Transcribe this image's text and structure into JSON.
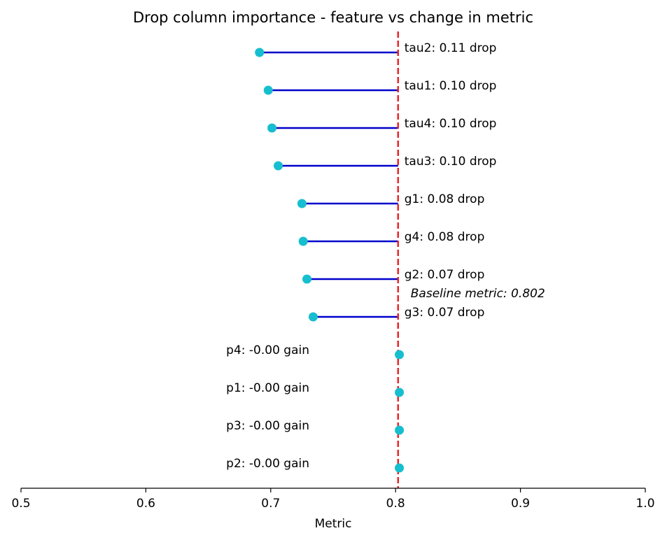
{
  "chart_data": {
    "type": "lollipop",
    "title": "Drop column importance - feature vs change in metric",
    "xlabel": "Metric",
    "ylabel": "",
    "xlim": [
      0.5,
      1.0
    ],
    "xticks": [
      "0.5",
      "0.6",
      "0.7",
      "0.8",
      "0.9",
      "1.0"
    ],
    "baseline": 0.802,
    "baseline_label": "Baseline metric: 0.802",
    "colors": {
      "stem": "#0000cc",
      "marker": "#17becf",
      "baseline_line": "#e8262b",
      "axis": "#000000"
    },
    "points": [
      {
        "feature": "tau2",
        "value": 0.691,
        "label": "tau2: 0.11 drop"
      },
      {
        "feature": "tau1",
        "value": 0.698,
        "label": "tau1: 0.10 drop"
      },
      {
        "feature": "tau4",
        "value": 0.701,
        "label": "tau4: 0.10 drop"
      },
      {
        "feature": "tau3",
        "value": 0.706,
        "label": "tau3: 0.10 drop"
      },
      {
        "feature": "g1",
        "value": 0.725,
        "label": "g1: 0.08 drop"
      },
      {
        "feature": "g4",
        "value": 0.726,
        "label": "g4: 0.08 drop"
      },
      {
        "feature": "g2",
        "value": 0.729,
        "label": "g2: 0.07 drop"
      },
      {
        "feature": "g3",
        "value": 0.734,
        "label": "g3: 0.07 drop"
      },
      {
        "feature": "p4",
        "value": 0.803,
        "label": "p4: -0.00 gain"
      },
      {
        "feature": "p1",
        "value": 0.803,
        "label": "p1: -0.00 gain"
      },
      {
        "feature": "p3",
        "value": 0.803,
        "label": "p3: -0.00 gain"
      },
      {
        "feature": "p2",
        "value": 0.803,
        "label": "p2: -0.00 gain"
      }
    ]
  }
}
